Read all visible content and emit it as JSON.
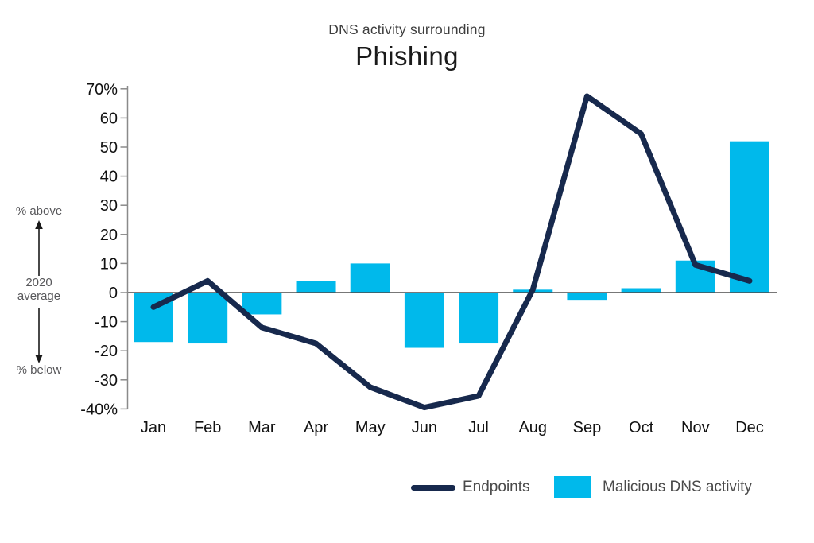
{
  "header": {
    "subtitle": "DNS activity surrounding",
    "title": "Phishing"
  },
  "axis_annotation": {
    "above": "% above",
    "center_line1": "2020",
    "center_line2": "average",
    "below": "% below"
  },
  "legend": {
    "endpoints_label": "Endpoints",
    "malicious_label": "Malicious DNS activity"
  },
  "colors": {
    "line": "#17294D",
    "bar": "#00B9EB",
    "axis_line": "#8a8a8a",
    "zero_line": "#4a4a4a",
    "tick_text": "#111111",
    "muted_text": "#58585b",
    "arrow": "#1a1a1a"
  },
  "chart_data": {
    "type": "bar",
    "subtype": "combo-line-and-bar",
    "title": "Phishing",
    "subtitle": "DNS activity surrounding",
    "categories": [
      "Jan",
      "Feb",
      "Mar",
      "Apr",
      "May",
      "Jun",
      "Jul",
      "Aug",
      "Sep",
      "Oct",
      "Nov",
      "Dec"
    ],
    "series": [
      {
        "name": "Endpoints",
        "type": "line",
        "values": [
          -5,
          4,
          -12,
          -17.5,
          -32.5,
          -39.5,
          -35.5,
          1,
          67.5,
          54.5,
          9.5,
          4
        ]
      },
      {
        "name": "Malicious DNS activity",
        "type": "bar",
        "values": [
          -17,
          -17.5,
          -7.5,
          4,
          10,
          -19,
          -17.5,
          1,
          -2.5,
          1.5,
          11,
          52
        ]
      }
    ],
    "ylabel_ticks": [
      "70%",
      "60",
      "50",
      "40",
      "30",
      "20",
      "10",
      "0",
      "-10",
      "-20",
      "-30",
      "-40%"
    ],
    "tick_values": [
      70,
      60,
      50,
      40,
      30,
      20,
      10,
      0,
      -10,
      -20,
      -30,
      -40
    ],
    "ylim": [
      -40,
      70
    ],
    "xlabel": "",
    "ylabel": "% above / below 2020 average",
    "grid": false,
    "legend_position": "bottom"
  }
}
